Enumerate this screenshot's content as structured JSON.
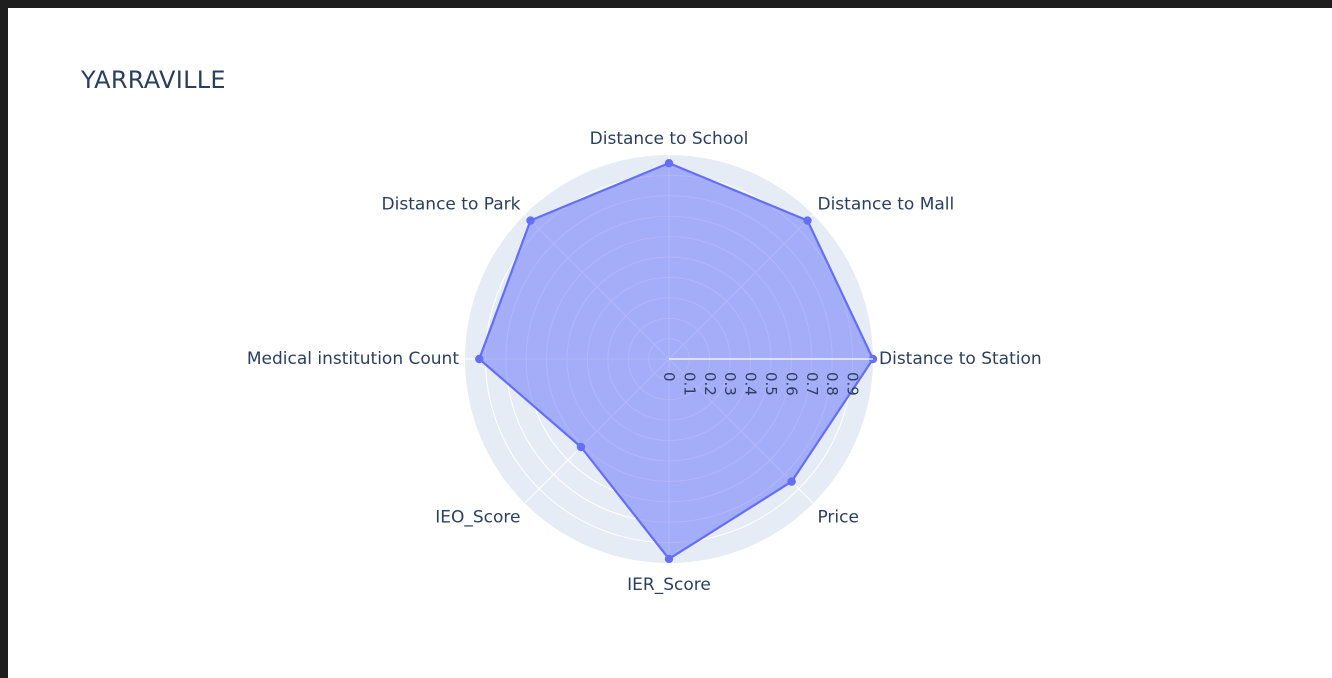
{
  "chart_data": {
    "type": "radar",
    "title": "YARRAVILLE",
    "categories": [
      "Distance to Station",
      "Distance to Mall",
      "Distance to School",
      "Distance to Park",
      "Medical institution Count",
      "IEO_Score",
      "IER_Score",
      "Price"
    ],
    "series": [
      {
        "values": [
          1.0,
          0.96,
          0.96,
          0.96,
          0.93,
          0.61,
          0.98,
          0.85
        ]
      }
    ],
    "radial_ticks": [
      "0",
      "0.1",
      "0.2",
      "0.3",
      "0.4",
      "0.5",
      "0.6",
      "0.7",
      "0.8",
      "0.9"
    ],
    "radial_range": [
      0,
      1.0
    ],
    "colors": {
      "fill": "#636efa",
      "line": "#636efa",
      "polar_bg": "#e5ecf6",
      "grid": "#ffffff",
      "text": "#2a3f5f"
    }
  }
}
